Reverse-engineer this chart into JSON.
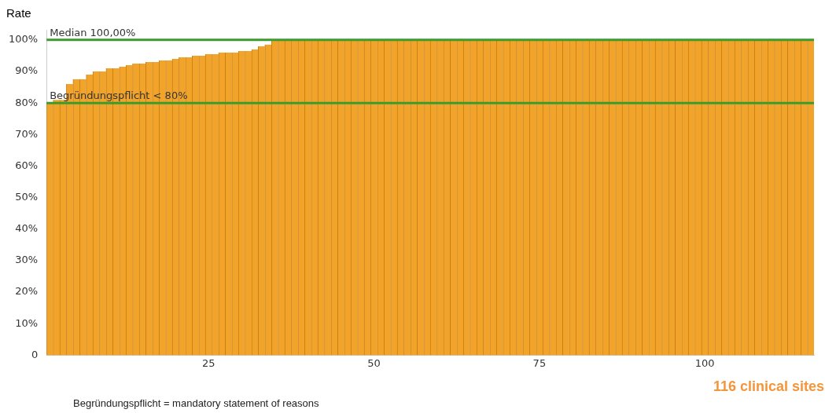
{
  "chart_data": {
    "type": "bar",
    "ylabel": "Rate",
    "x": [
      1,
      2,
      3,
      4,
      5,
      6,
      7,
      8,
      9,
      10,
      11,
      12,
      13,
      14,
      15,
      16,
      17,
      18,
      19,
      20,
      21,
      22,
      23,
      24,
      25,
      26,
      27,
      28,
      29,
      30,
      31,
      32,
      33,
      34,
      35,
      36,
      37,
      38,
      39,
      40,
      41,
      42,
      43,
      44,
      45,
      46,
      47,
      48,
      49,
      50,
      51,
      52,
      53,
      54,
      55,
      56,
      57,
      58,
      59,
      60,
      61,
      62,
      63,
      64,
      65,
      66,
      67,
      68,
      69,
      70,
      71,
      72,
      73,
      74,
      75,
      76,
      77,
      78,
      79,
      80,
      81,
      82,
      83,
      84,
      85,
      86,
      87,
      88,
      89,
      90,
      91,
      92,
      93,
      94,
      95,
      96,
      97,
      98,
      99,
      100,
      101,
      102,
      103,
      104,
      105,
      106,
      107,
      108,
      109,
      110,
      111,
      112,
      113,
      114,
      115,
      116
    ],
    "values": [
      80,
      81,
      81,
      86,
      87.5,
      87.5,
      89,
      90,
      90,
      91,
      91,
      91.5,
      92,
      92.5,
      92.5,
      93,
      93,
      93.5,
      93.5,
      94,
      94.5,
      94.5,
      95,
      95,
      95.5,
      95.5,
      96,
      96,
      96,
      96.5,
      96.5,
      97,
      98,
      98.5,
      100,
      100,
      100,
      100,
      100,
      100,
      100,
      100,
      100,
      100,
      100,
      100,
      100,
      100,
      100,
      100,
      100,
      100,
      100,
      100,
      100,
      100,
      100,
      100,
      100,
      100,
      100,
      100,
      100,
      100,
      100,
      100,
      100,
      100,
      100,
      100,
      100,
      100,
      100,
      100,
      100,
      100,
      100,
      100,
      100,
      100,
      100,
      100,
      100,
      100,
      100,
      100,
      100,
      100,
      100,
      100,
      100,
      100,
      100,
      100,
      100,
      100,
      100,
      100,
      100,
      100,
      100,
      100,
      100,
      100,
      100,
      100,
      100,
      100,
      100,
      100,
      100,
      100,
      100,
      100,
      100,
      100
    ],
    "color": "#f2a42a",
    "xlim": [
      0.5,
      116.5
    ],
    "xticks": [
      25,
      50,
      75,
      100
    ],
    "ylim": [
      0,
      103
    ],
    "yticks": [
      {
        "value": 0,
        "label": "0"
      },
      {
        "value": 10,
        "label": "10%"
      },
      {
        "value": 20,
        "label": "20%"
      },
      {
        "value": 30,
        "label": "30%"
      },
      {
        "value": 40,
        "label": "40%"
      },
      {
        "value": 50,
        "label": "50%"
      },
      {
        "value": 60,
        "label": "60%"
      },
      {
        "value": 70,
        "label": "70%"
      },
      {
        "value": 80,
        "label": "80%"
      },
      {
        "value": 90,
        "label": "90%"
      },
      {
        "value": 100,
        "label": "100%"
      }
    ],
    "ref_lines": [
      {
        "axis": "y",
        "value": 100,
        "label": "Median 100,00%",
        "color": "#3a9c2c"
      },
      {
        "axis": "y",
        "value": 80,
        "label": "Begründungspflicht < 80%",
        "color": "#3a9c2c"
      }
    ],
    "annotations": [
      "116 clinical sites",
      "Begründungspflicht = mandatory statement of reasons"
    ],
    "grid": false,
    "legend": false
  }
}
